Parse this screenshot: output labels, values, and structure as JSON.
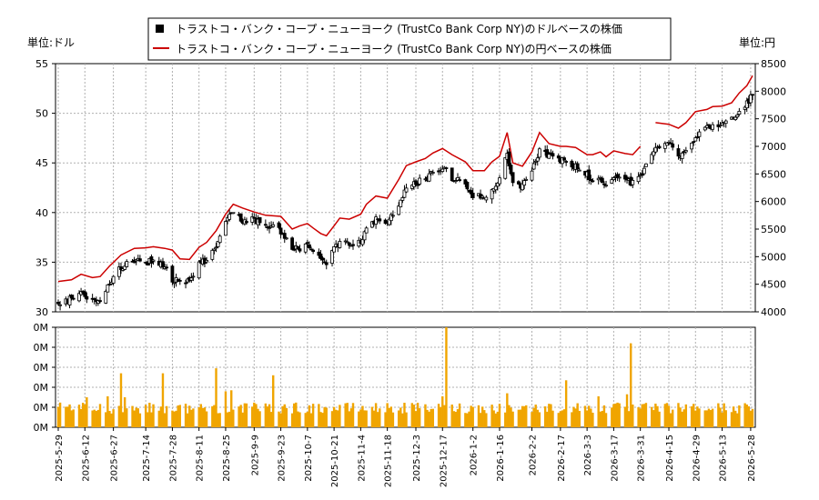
{
  "legend": {
    "items": [
      {
        "label": "トラストコ・バンク・コープ・ニューヨーク (TrustCo Bank Corp NY)のドルベースの株価",
        "color": "#000000",
        "marker": "filled-square"
      },
      {
        "label": "トラストコ・バンク・コープ・ニューヨーク (TrustCo Bank Corp NY)の円ベースの株価",
        "color": "#cc0000",
        "marker": "line"
      }
    ]
  },
  "units": {
    "left": "単位:ドル",
    "right": "単位:円"
  },
  "chart_data": [
    {
      "type": "candlestick",
      "series_name": "トラストコ・バンク・コープ・ニューヨーク (TrustCo Bank Corp NY)のドルベースの株価",
      "y_axis": "left",
      "ylim": [
        30,
        55
      ],
      "yticks": [
        30,
        35,
        40,
        45,
        50,
        55
      ],
      "xlim": [
        "2025-05-29",
        "2026-05-29"
      ],
      "x_tick_labels": [
        "2025-5-29",
        "2025-6-12",
        "2025-6-27",
        "2025-7-14",
        "2025-7-28",
        "2025-8-11",
        "2025-8-25",
        "2025-9-9",
        "2025-9-23",
        "2025-10-7",
        "2025-10-21",
        "2025-11-4",
        "2025-11-18",
        "2025-12-3",
        "2025-12-17",
        "2026-1-2",
        "2026-1-16",
        "2026-2-2",
        "2026-2-17",
        "2026-3-3",
        "2026-3-17",
        "2026-3-31",
        "2026-4-15",
        "2026-4-29",
        "2026-5-13",
        "2026-5-28"
      ],
      "close_anchors": [
        [
          "2025-05-29",
          30.8
        ],
        [
          "2025-06-05",
          31.3
        ],
        [
          "2025-06-10",
          31.8
        ],
        [
          "2025-06-16",
          31.0
        ],
        [
          "2025-06-20",
          31.2
        ],
        [
          "2025-06-25",
          32.8
        ],
        [
          "2025-07-01",
          34.5
        ],
        [
          "2025-07-08",
          35.2
        ],
        [
          "2025-07-14",
          35.0
        ],
        [
          "2025-07-18",
          35.2
        ],
        [
          "2025-07-24",
          34.5
        ],
        [
          "2025-07-28",
          33.3
        ],
        [
          "2025-08-01",
          33.0
        ],
        [
          "2025-08-06",
          33.3
        ],
        [
          "2025-08-11",
          34.8
        ],
        [
          "2025-08-15",
          35.3
        ],
        [
          "2025-08-20",
          36.5
        ],
        [
          "2025-08-25",
          39.0
        ],
        [
          "2025-08-29",
          40.0
        ],
        [
          "2025-09-03",
          39.2
        ],
        [
          "2025-09-09",
          39.3
        ],
        [
          "2025-09-15",
          38.5
        ],
        [
          "2025-09-19",
          38.7
        ],
        [
          "2025-09-23",
          38.0
        ],
        [
          "2025-09-29",
          36.5
        ],
        [
          "2025-10-03",
          36.2
        ],
        [
          "2025-10-07",
          36.6
        ],
        [
          "2025-10-10",
          35.8
        ],
        [
          "2025-10-14",
          35.3
        ],
        [
          "2025-10-17",
          34.8
        ],
        [
          "2025-10-21",
          36.3
        ],
        [
          "2025-10-24",
          37.0
        ],
        [
          "2025-10-29",
          36.8
        ],
        [
          "2025-11-04",
          37.2
        ],
        [
          "2025-11-07",
          38.5
        ],
        [
          "2025-11-12",
          39.3
        ],
        [
          "2025-11-18",
          39.0
        ],
        [
          "2025-11-24",
          40.5
        ],
        [
          "2025-11-28",
          42.5
        ],
        [
          "2025-12-03",
          43.0
        ],
        [
          "2025-12-08",
          43.3
        ],
        [
          "2025-12-12",
          44.2
        ],
        [
          "2025-12-17",
          44.5
        ],
        [
          "2025-12-22",
          43.5
        ],
        [
          "2025-12-29",
          43.0
        ],
        [
          "2026-01-02",
          41.8
        ],
        [
          "2026-01-08",
          41.5
        ],
        [
          "2026-01-12",
          42.6
        ],
        [
          "2026-01-16",
          43.2
        ],
        [
          "2026-01-20",
          46.0
        ],
        [
          "2026-01-23",
          42.8
        ],
        [
          "2026-01-28",
          42.8
        ],
        [
          "2026-02-02",
          44.5
        ],
        [
          "2026-02-06",
          46.2
        ],
        [
          "2026-02-11",
          45.8
        ],
        [
          "2026-02-17",
          45.3
        ],
        [
          "2026-02-20",
          45.0
        ],
        [
          "2026-02-25",
          44.6
        ],
        [
          "2026-03-03",
          43.8
        ],
        [
          "2026-03-06",
          43.0
        ],
        [
          "2026-03-10",
          43.6
        ],
        [
          "2026-03-13",
          42.8
        ],
        [
          "2026-03-17",
          43.5
        ],
        [
          "2026-03-23",
          43.2
        ],
        [
          "2026-03-27",
          42.9
        ],
        [
          "2026-03-31",
          43.8
        ],
        [
          "2026-04-03",
          44.6
        ],
        [
          "2026-04-08",
          46.5
        ],
        [
          "2026-04-15",
          46.8
        ],
        [
          "2026-04-20",
          45.8
        ],
        [
          "2026-04-24",
          46.2
        ],
        [
          "2026-04-29",
          47.5
        ],
        [
          "2026-05-05",
          48.6
        ],
        [
          "2026-05-08",
          48.9
        ],
        [
          "2026-05-13",
          49.0
        ],
        [
          "2026-05-18",
          49.3
        ],
        [
          "2026-05-22",
          50.2
        ],
        [
          "2026-05-26",
          51.0
        ],
        [
          "2026-05-29",
          51.9
        ]
      ]
    },
    {
      "type": "line",
      "series_name": "トラストコ・バンク・コープ・ニューヨーク (TrustCo Bank Corp NY)の円ベースの株価",
      "y_axis": "right",
      "ylim": [
        4000,
        8500
      ],
      "yticks": [
        4000,
        4500,
        5000,
        5500,
        6000,
        6500,
        7000,
        7500,
        8000,
        8500
      ],
      "color": "#cc0000",
      "gap_after": "2026-03-31",
      "points": [
        [
          "2025-05-29",
          4550
        ],
        [
          "2025-06-05",
          4580
        ],
        [
          "2025-06-10",
          4680
        ],
        [
          "2025-06-16",
          4620
        ],
        [
          "2025-06-20",
          4640
        ],
        [
          "2025-06-25",
          4830
        ],
        [
          "2025-07-01",
          5030
        ],
        [
          "2025-07-08",
          5150
        ],
        [
          "2025-07-14",
          5160
        ],
        [
          "2025-07-18",
          5180
        ],
        [
          "2025-07-24",
          5150
        ],
        [
          "2025-07-28",
          5120
        ],
        [
          "2025-08-01",
          4960
        ],
        [
          "2025-08-06",
          4950
        ],
        [
          "2025-08-11",
          5170
        ],
        [
          "2025-08-15",
          5260
        ],
        [
          "2025-08-20",
          5470
        ],
        [
          "2025-08-25",
          5770
        ],
        [
          "2025-08-29",
          5950
        ],
        [
          "2025-09-03",
          5880
        ],
        [
          "2025-09-09",
          5810
        ],
        [
          "2025-09-15",
          5750
        ],
        [
          "2025-09-19",
          5740
        ],
        [
          "2025-09-23",
          5730
        ],
        [
          "2025-09-29",
          5500
        ],
        [
          "2025-10-03",
          5560
        ],
        [
          "2025-10-07",
          5600
        ],
        [
          "2025-10-10",
          5520
        ],
        [
          "2025-10-14",
          5420
        ],
        [
          "2025-10-17",
          5380
        ],
        [
          "2025-10-21",
          5560
        ],
        [
          "2025-10-24",
          5700
        ],
        [
          "2025-10-29",
          5680
        ],
        [
          "2025-11-04",
          5770
        ],
        [
          "2025-11-07",
          5950
        ],
        [
          "2025-11-12",
          6100
        ],
        [
          "2025-11-18",
          6060
        ],
        [
          "2025-11-24",
          6400
        ],
        [
          "2025-11-28",
          6650
        ],
        [
          "2025-12-03",
          6720
        ],
        [
          "2025-12-08",
          6780
        ],
        [
          "2025-12-12",
          6880
        ],
        [
          "2025-12-17",
          6960
        ],
        [
          "2025-12-22",
          6850
        ],
        [
          "2025-12-29",
          6720
        ],
        [
          "2026-01-02",
          6560
        ],
        [
          "2026-01-08",
          6560
        ],
        [
          "2026-01-12",
          6720
        ],
        [
          "2026-01-16",
          6820
        ],
        [
          "2026-01-20",
          7250
        ],
        [
          "2026-01-23",
          6700
        ],
        [
          "2026-01-28",
          6640
        ],
        [
          "2026-02-02",
          6900
        ],
        [
          "2026-02-06",
          7250
        ],
        [
          "2026-02-11",
          7050
        ],
        [
          "2026-02-17",
          7000
        ],
        [
          "2026-02-20",
          7000
        ],
        [
          "2026-02-25",
          6980
        ],
        [
          "2026-03-03",
          6850
        ],
        [
          "2026-03-06",
          6850
        ],
        [
          "2026-03-10",
          6900
        ],
        [
          "2026-03-13",
          6810
        ],
        [
          "2026-03-17",
          6920
        ],
        [
          "2026-03-23",
          6870
        ],
        [
          "2026-03-27",
          6850
        ],
        [
          "2026-03-31",
          7000
        ],
        [
          "2026-04-08",
          7430
        ],
        [
          "2026-04-15",
          7400
        ],
        [
          "2026-04-20",
          7330
        ],
        [
          "2026-04-24",
          7430
        ],
        [
          "2026-04-29",
          7630
        ],
        [
          "2026-05-05",
          7670
        ],
        [
          "2026-05-08",
          7720
        ],
        [
          "2026-05-13",
          7730
        ],
        [
          "2026-05-18",
          7790
        ],
        [
          "2026-05-22",
          7970
        ],
        [
          "2026-05-26",
          8100
        ],
        [
          "2026-05-29",
          8280
        ]
      ]
    },
    {
      "type": "bar",
      "series_name": "volume",
      "y_axis": "left",
      "ylim": [
        0,
        5
      ],
      "ytick_labels": [
        "0M",
        "0M",
        "0M",
        "0M",
        "0M",
        "0M"
      ],
      "color": "#f0a500",
      "base_level": 0.85,
      "spikes": [
        [
          "2025-06-13",
          1.5
        ],
        [
          "2025-06-24",
          1.55
        ],
        [
          "2025-07-01",
          2.7
        ],
        [
          "2025-07-03",
          1.5
        ],
        [
          "2025-07-23",
          2.7
        ],
        [
          "2025-08-20",
          2.95
        ],
        [
          "2025-08-25",
          1.8
        ],
        [
          "2025-08-28",
          1.85
        ],
        [
          "2025-09-19",
          2.6
        ],
        [
          "2025-12-17",
          1.55
        ],
        [
          "2025-12-19",
          5.0
        ],
        [
          "2026-01-20",
          1.7
        ],
        [
          "2026-02-20",
          2.35
        ],
        [
          "2026-03-09",
          1.55
        ],
        [
          "2026-03-24",
          1.65
        ],
        [
          "2026-03-26",
          4.2
        ]
      ]
    }
  ]
}
